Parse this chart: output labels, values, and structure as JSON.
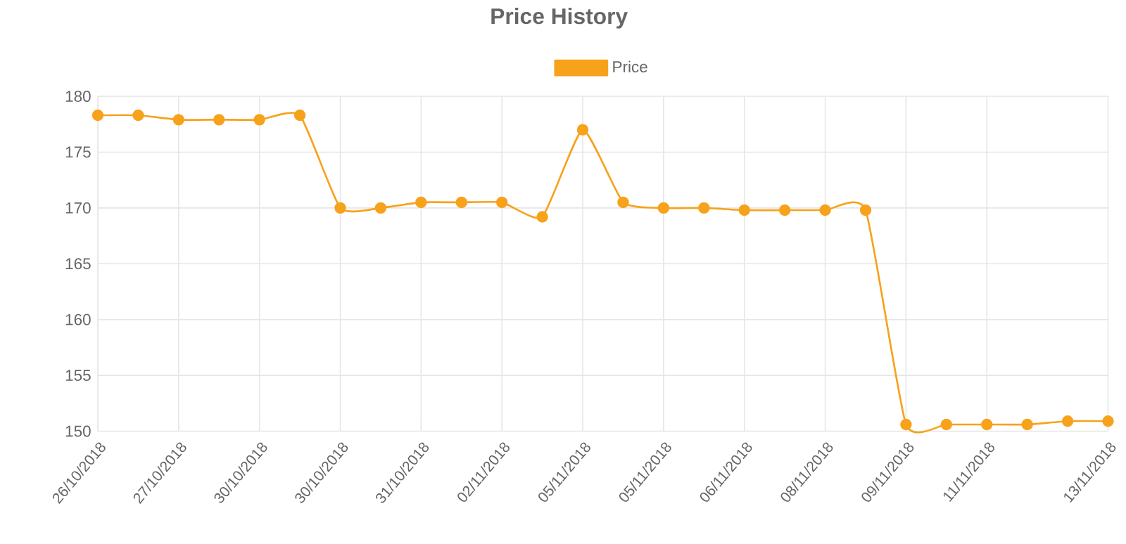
{
  "chart_data": {
    "type": "line",
    "title": "Price History",
    "categories": [
      "26/10/2018",
      null,
      "27/10/2018",
      null,
      "30/10/2018",
      null,
      "30/10/2018",
      null,
      "31/10/2018",
      null,
      "02/11/2018",
      null,
      "05/11/2018",
      null,
      "05/11/2018",
      null,
      "06/11/2018",
      null,
      "08/11/2018",
      null,
      "09/11/2018",
      null,
      "11/11/2018",
      null,
      null,
      "13/11/2018"
    ],
    "series": [
      {
        "name": "Price",
        "color": "#f7a21b",
        "values": [
          178.3,
          178.3,
          177.9,
          177.9,
          177.9,
          178.3,
          170,
          170,
          170.5,
          170.5,
          170.5,
          169.2,
          177,
          170.5,
          170,
          170,
          169.8,
          169.8,
          169.8,
          169.8,
          150.6,
          150.6,
          150.6,
          150.6,
          150.9,
          150.9
        ]
      }
    ],
    "ylim": [
      150,
      180
    ],
    "yticks": [
      150,
      155,
      160,
      165,
      170,
      175,
      180
    ],
    "grid": true,
    "legend": "top",
    "marker": "circle",
    "line_style": "solid"
  }
}
